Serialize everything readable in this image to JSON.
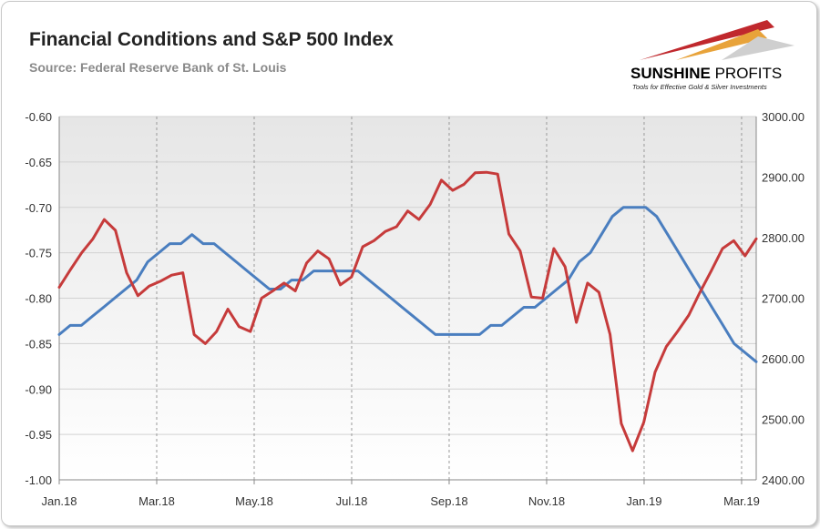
{
  "title": "Financial Conditions and S&P 500 Index",
  "subtitle": "Source: Federal Reserve Bank of St. Louis",
  "logo": {
    "name_bold": "SUNSHINE",
    "name_rest": " PROFITS",
    "tagline": "Tools for Effective Gold & Silver Investments",
    "colors": [
      "#c0282d",
      "#e8a33a",
      "#b5b5b5"
    ]
  },
  "chart_data": {
    "type": "line",
    "title": "Financial Conditions and S&P 500 Index",
    "x_labels": [
      "Jan.18",
      "Mar.18",
      "May.18",
      "Jul.18",
      "Sep.18",
      "Nov.18",
      "Jan.19",
      "Mar.19"
    ],
    "y_left": {
      "ylim": [
        -1.0,
        -0.6
      ],
      "ticks": [
        "-0.60",
        "-0.65",
        "-0.70",
        "-0.75",
        "-0.80",
        "-0.85",
        "-0.90",
        "-0.95",
        "-1.00"
      ]
    },
    "y_right": {
      "ylim": [
        2400,
        3000
      ],
      "ticks": [
        "3000.00",
        "2900.00",
        "2800.00",
        "2700.00",
        "2600.00",
        "2500.00",
        "2400.00"
      ]
    },
    "grid": true,
    "series": [
      {
        "axis": "left",
        "color": "#4a7ebf",
        "values": [
          -0.84,
          -0.83,
          -0.83,
          -0.82,
          -0.81,
          -0.8,
          -0.79,
          -0.78,
          -0.76,
          -0.75,
          -0.74,
          -0.74,
          -0.73,
          -0.74,
          -0.74,
          -0.75,
          -0.76,
          -0.77,
          -0.78,
          -0.79,
          -0.79,
          -0.78,
          -0.78,
          -0.77,
          -0.77,
          -0.77,
          -0.77,
          -0.77,
          -0.78,
          -0.79,
          -0.8,
          -0.81,
          -0.82,
          -0.83,
          -0.84,
          -0.84,
          -0.84,
          -0.84,
          -0.84,
          -0.83,
          -0.83,
          -0.82,
          -0.81,
          -0.81,
          -0.8,
          -0.79,
          -0.78,
          -0.76,
          -0.75,
          -0.73,
          -0.71,
          -0.7,
          -0.7,
          -0.7,
          -0.71,
          -0.73,
          -0.75,
          -0.77,
          -0.79,
          -0.81,
          -0.83,
          -0.85,
          -0.86,
          -0.87
        ]
      },
      {
        "axis": "right",
        "color": "#c63b3b",
        "values": [
          2718,
          2747,
          2775,
          2798,
          2830,
          2812,
          2742,
          2704,
          2720,
          2728,
          2738,
          2742,
          2640,
          2625,
          2645,
          2682,
          2653,
          2645,
          2700,
          2712,
          2725,
          2712,
          2758,
          2778,
          2765,
          2722,
          2735,
          2785,
          2795,
          2810,
          2818,
          2844,
          2830,
          2855,
          2895,
          2878,
          2888,
          2907,
          2908,
          2905,
          2806,
          2778,
          2702,
          2700,
          2782,
          2752,
          2660,
          2725,
          2710,
          2640,
          2493,
          2448,
          2495,
          2578,
          2620,
          2645,
          2672,
          2710,
          2745,
          2782,
          2795,
          2770,
          2798
        ],
        "x_start": 0
      }
    ]
  }
}
